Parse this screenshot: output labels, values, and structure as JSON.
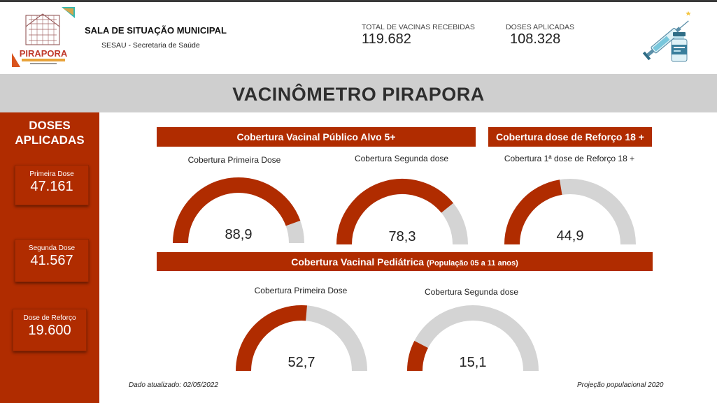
{
  "header": {
    "title": "SALA DE SITUAÇÃO MUNICIPAL",
    "subtitle": "SESAU - Secretaria de Saúde",
    "logo_text": "PIRAPORA",
    "kpis": [
      {
        "label": "TOTAL DE VACINAS RECEBIDAS",
        "value": "119.682"
      },
      {
        "label": "DOSES APLICADAS",
        "value": "108.328"
      }
    ]
  },
  "banner": {
    "title": "VACINÔMETRO PIRAPORA"
  },
  "sidebar": {
    "title_line1": "DOSES",
    "title_line2": "APLICADAS",
    "cards": [
      {
        "label": "Primeira Dose",
        "value": "47.161"
      },
      {
        "label": "Segunda Dose",
        "value": "41.567"
      },
      {
        "label": "Dose de Reforço",
        "value": "19.600"
      }
    ]
  },
  "sections": {
    "adult": "Cobertura Vacinal Público Alvo 5+",
    "booster": "Cobertura dose de Reforço 18 +",
    "pediatric": "Cobertura Vacinal Pediátrica",
    "pediatric_note": "(População 05 a 11 anos)"
  },
  "gauges": [
    {
      "title": "Cobertura Primeira Dose",
      "value": 88.9,
      "label": "88,9"
    },
    {
      "title": "Cobertura Segunda dose",
      "value": 78.3,
      "label": "78,3"
    },
    {
      "title": "Cobertura 1ª dose de Reforço 18 +",
      "value": 44.9,
      "label": "44,9"
    },
    {
      "title": "Cobertura Primeira Dose",
      "value": 52.7,
      "label": "52,7"
    },
    {
      "title": "Cobertura Segunda dose",
      "value": 15.1,
      "label": "15,1"
    }
  ],
  "colors": {
    "accent": "#b02c00",
    "gauge_track": "#d4d4d4",
    "banner": "#cfcfcf"
  },
  "footer": {
    "updated": "Dado atualizado: 02/05/2022",
    "projection": "Projeção populacional 2020"
  }
}
